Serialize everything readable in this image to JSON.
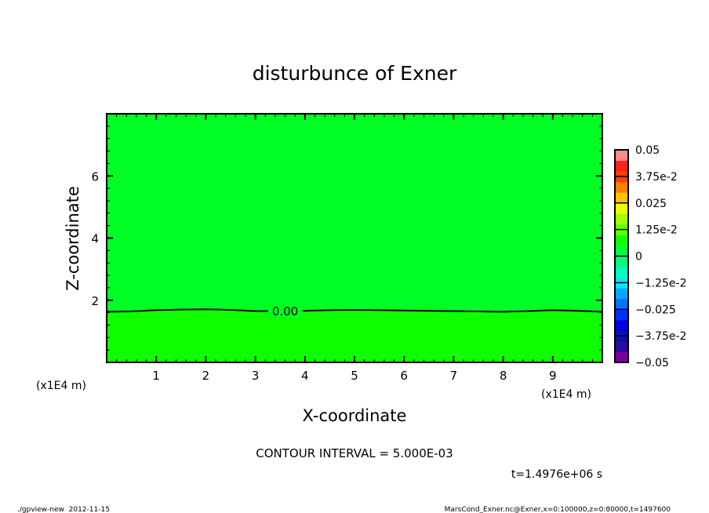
{
  "chart_data": {
    "type": "heatmap",
    "subtype": "contour",
    "title": "disturbunce of Exner",
    "xlabel": "X-coordinate",
    "ylabel": "Z-coordinate",
    "x_unit_label": "(x1E4 m)",
    "y_unit_label": "(x1E4 m)",
    "xlim": [
      0,
      10
    ],
    "ylim": [
      0,
      8
    ],
    "xticks": [
      "1",
      "2",
      "3",
      "4",
      "5",
      "6",
      "7",
      "8",
      "9"
    ],
    "yticks": [
      "2",
      "4",
      "6"
    ],
    "regions": [
      {
        "range": "0 to 5.0e-3",
        "color": "#10ff00",
        "position": "below contour"
      },
      {
        "range": "-5.0e-3 to 0",
        "color": "#00ff24",
        "position": "above contour"
      }
    ],
    "contour": {
      "label": "0.00",
      "x": [
        0,
        0.5,
        1,
        1.5,
        2,
        2.5,
        3,
        3.5,
        4,
        4.5,
        5,
        5.5,
        6,
        6.5,
        7,
        7.5,
        8,
        8.5,
        9,
        9.5,
        10
      ],
      "z": [
        1.63,
        1.64,
        1.68,
        1.7,
        1.71,
        1.69,
        1.65,
        1.65,
        1.66,
        1.68,
        1.69,
        1.68,
        1.67,
        1.66,
        1.65,
        1.64,
        1.63,
        1.65,
        1.68,
        1.66,
        1.63
      ]
    },
    "colorbar": {
      "labels": [
        "0.05",
        "3.75e-2",
        "0.025",
        "1.25e-2",
        "0",
        "−1.25e-2",
        "−0.025",
        "−3.75e-2",
        "−0.05"
      ],
      "min": -0.05,
      "max": 0.05,
      "colors": [
        "#7a00a0",
        "#2a0aa0",
        "#0a10b0",
        "#0000e0",
        "#0030ff",
        "#0070ff",
        "#00a8ff",
        "#00e8ff",
        "#00ffc0",
        "#00ff80",
        "#00ff40",
        "#10ff00",
        "#60ff00",
        "#a0ff00",
        "#e8ff00",
        "#ffc000",
        "#ff8000",
        "#ff4000",
        "#ff2020",
        "#ff8888"
      ]
    },
    "contour_interval": "CONTOUR INTERVAL = 5.000E-03",
    "time_label": "t=1.4976e+06 s"
  },
  "footer": {
    "left": "./gpview-new  2012-11-15",
    "right": "MarsCond_Exner.nc@Exner,x=0:100000,z=0:80000,t=1497600"
  }
}
